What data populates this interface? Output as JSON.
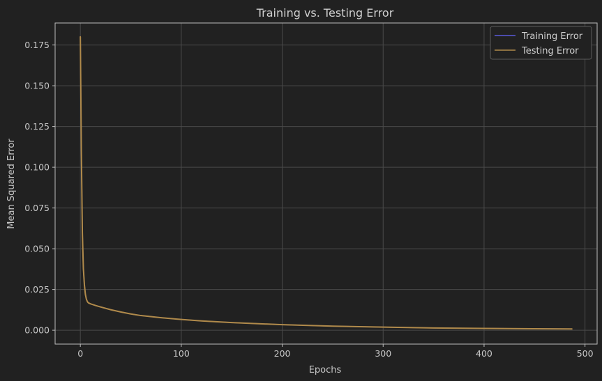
{
  "chart_data": {
    "type": "line",
    "title": "Training vs. Testing Error",
    "xlabel": "Epochs",
    "ylabel": "Mean Squared Error",
    "xlim": [
      -25,
      512
    ],
    "ylim": [
      -0.0085,
      0.1885
    ],
    "xticks": [
      0,
      100,
      200,
      300,
      400,
      500
    ],
    "xtick_labels": [
      "0",
      "100",
      "200",
      "300",
      "400",
      "500"
    ],
    "yticks": [
      0.0,
      0.025,
      0.05,
      0.075,
      0.1,
      0.125,
      0.15,
      0.175
    ],
    "ytick_labels": [
      "0.000",
      "0.025",
      "0.050",
      "0.075",
      "0.100",
      "0.125",
      "0.150",
      "0.175"
    ],
    "grid": true,
    "legend_position": "top-right",
    "series": [
      {
        "name": "Training Error",
        "color": "#5a5adc",
        "x": [
          0,
          1,
          2,
          3,
          4,
          5,
          6,
          7,
          8,
          10,
          15,
          20,
          30,
          40,
          50,
          60,
          80,
          100,
          120,
          150,
          200,
          250,
          300,
          350,
          400,
          450,
          487
        ],
        "y": [
          0.18,
          0.11,
          0.06,
          0.038,
          0.028,
          0.022,
          0.019,
          0.0175,
          0.0168,
          0.0162,
          0.0152,
          0.0143,
          0.0126,
          0.0112,
          0.01,
          0.009,
          0.0077,
          0.0066,
          0.0057,
          0.0047,
          0.0034,
          0.0025,
          0.0019,
          0.0014,
          0.0011,
          0.0009,
          0.0008
        ]
      },
      {
        "name": "Testing Error",
        "color": "#b08a4a",
        "x": [
          0,
          1,
          2,
          3,
          4,
          5,
          6,
          7,
          8,
          10,
          15,
          20,
          30,
          40,
          50,
          60,
          80,
          100,
          120,
          150,
          200,
          250,
          300,
          350,
          400,
          450,
          487
        ],
        "y": [
          0.18,
          0.11,
          0.06,
          0.038,
          0.028,
          0.022,
          0.019,
          0.0175,
          0.0168,
          0.0162,
          0.0152,
          0.0143,
          0.0126,
          0.0112,
          0.01,
          0.009,
          0.0077,
          0.0066,
          0.0057,
          0.0047,
          0.0034,
          0.0025,
          0.0019,
          0.0014,
          0.0011,
          0.0009,
          0.0008
        ]
      }
    ]
  }
}
